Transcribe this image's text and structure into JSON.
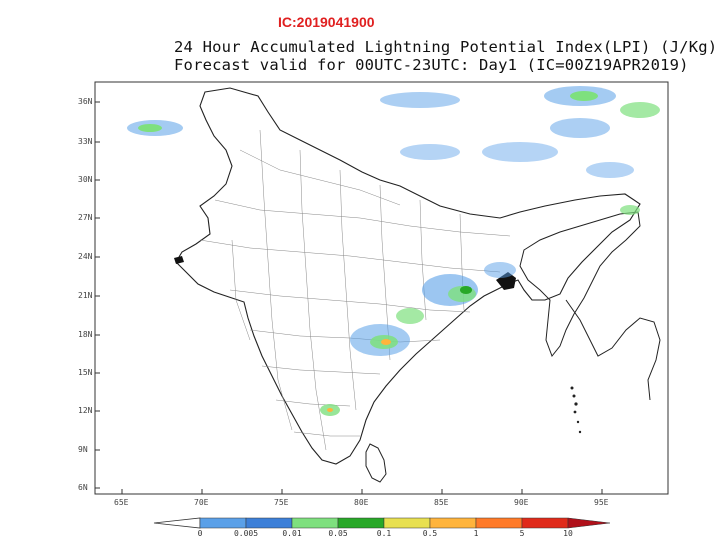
{
  "ic_label": "IC:2019041900",
  "title": {
    "line1": "24 Hour Accumulated Lightning Potential Index(LPI) (J/Kg)",
    "line2": "Forecast valid for 00UTC-23UTC: Day1 (IC=00Z19APR2019)"
  },
  "axes": {
    "lat_labels": [
      "36N",
      "33N",
      "30N",
      "27N",
      "24N",
      "21N",
      "18N",
      "15N",
      "12N",
      "9N",
      "6N"
    ],
    "lon_labels": [
      "65E",
      "70E",
      "75E",
      "80E",
      "85E",
      "90E",
      "95E"
    ]
  },
  "colorbar": {
    "labels": [
      "0",
      "0.005",
      "0.01",
      "0.05",
      "0.1",
      "0.5",
      "1",
      "5",
      "10"
    ],
    "colors": [
      "#5aa0e8",
      "#3c7fd8",
      "#7ee07e",
      "#28a828",
      "#e8e050",
      "#ffb43c",
      "#ff7a28",
      "#e02a1a",
      "#b0101a"
    ]
  }
}
